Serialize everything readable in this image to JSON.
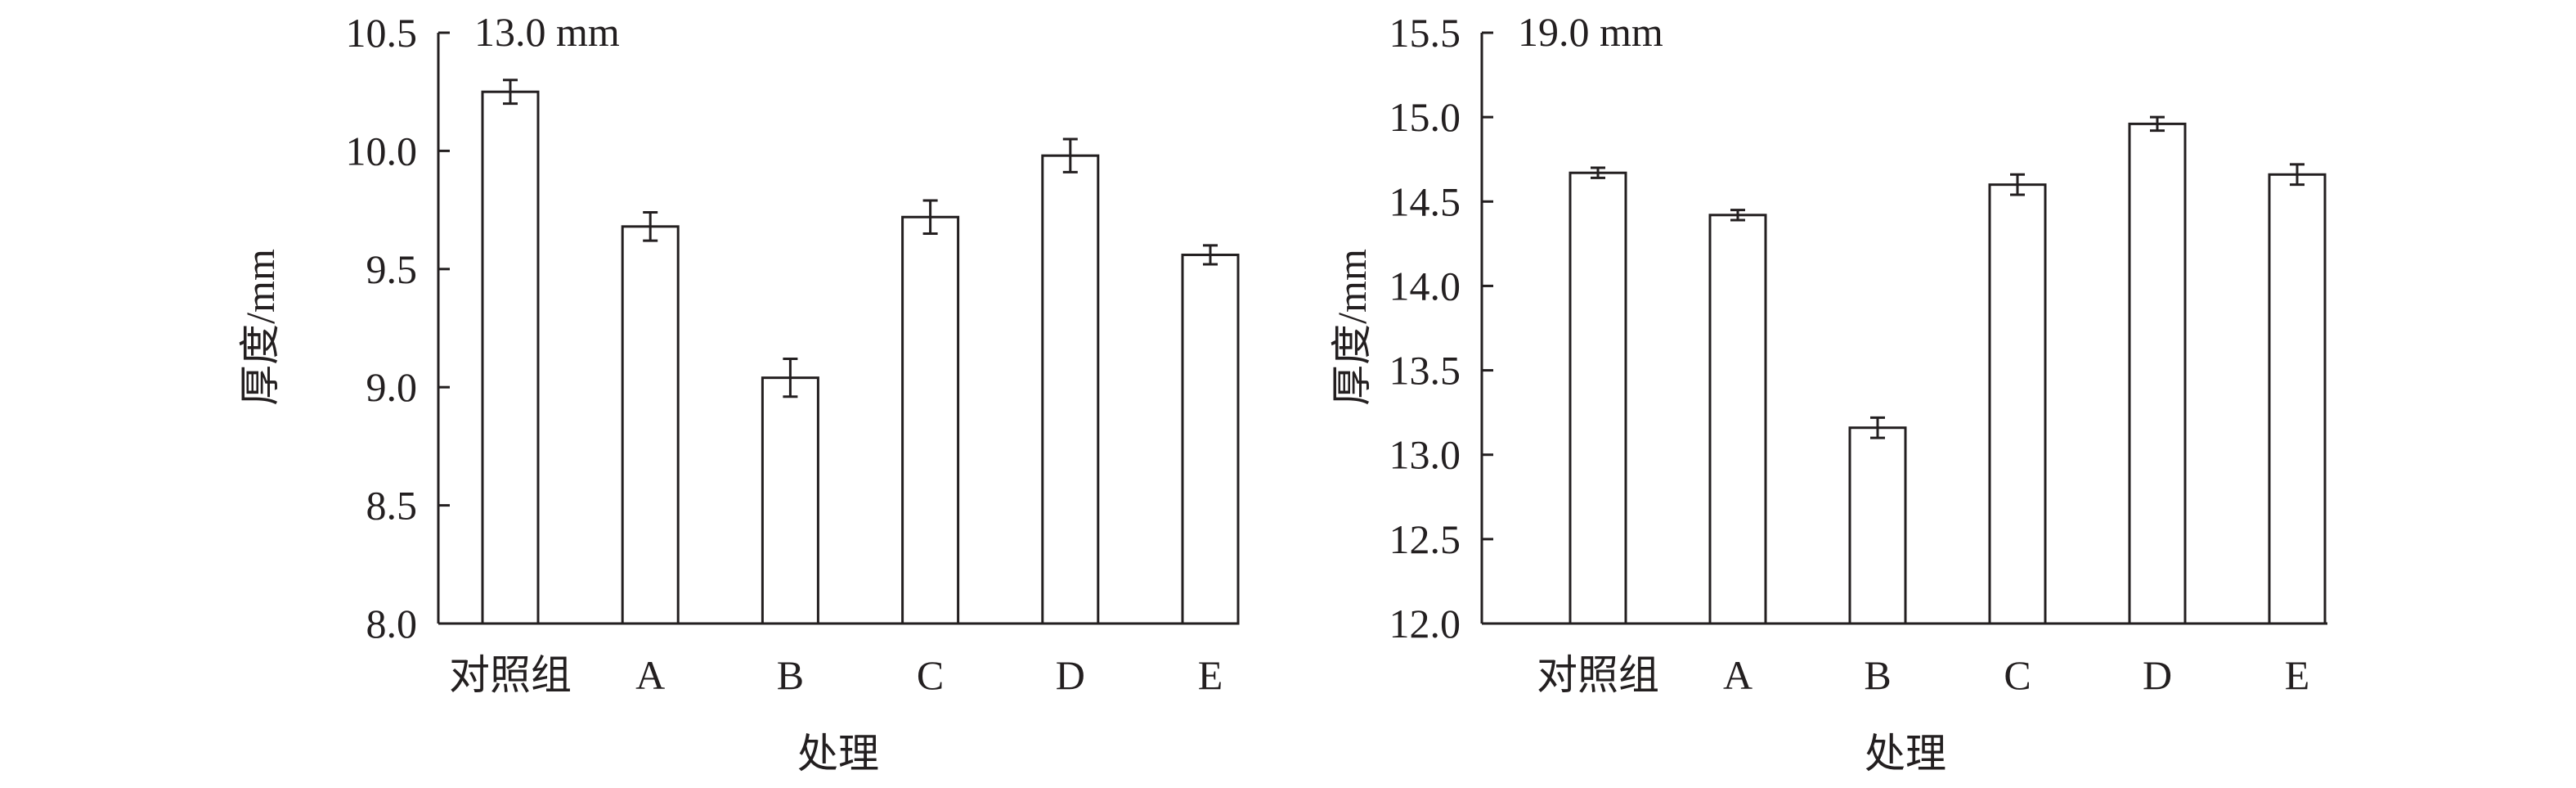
{
  "chart_data": [
    {
      "type": "bar",
      "title": "13.0 mm",
      "xlabel": "处理",
      "ylabel": "厚度/mm",
      "categories": [
        "对照组",
        "A",
        "B",
        "C",
        "D",
        "E"
      ],
      "values": [
        10.25,
        9.68,
        9.04,
        9.72,
        9.98,
        9.56
      ],
      "errors": [
        0.05,
        0.06,
        0.08,
        0.07,
        0.07,
        0.04
      ],
      "ylim": [
        8.0,
        10.5
      ],
      "yticks": [
        "8.0",
        "8.5",
        "9.0",
        "9.5",
        "10.0",
        "10.5"
      ],
      "grid": false
    },
    {
      "type": "bar",
      "title": "19.0 mm",
      "xlabel": "处理",
      "ylabel": "厚度/mm",
      "categories": [
        "对照组",
        "A",
        "B",
        "C",
        "D",
        "E"
      ],
      "values": [
        14.67,
        14.42,
        13.16,
        14.6,
        14.96,
        14.66
      ],
      "errors": [
        0.03,
        0.03,
        0.06,
        0.06,
        0.04,
        0.06
      ],
      "ylim": [
        12.0,
        15.5
      ],
      "yticks": [
        "12.0",
        "12.5",
        "13.0",
        "13.5",
        "14.0",
        "14.5",
        "15.0",
        "15.5"
      ],
      "grid": false
    }
  ],
  "colors": {
    "bar_fill": "#ffffff",
    "stroke": "#231f20"
  }
}
